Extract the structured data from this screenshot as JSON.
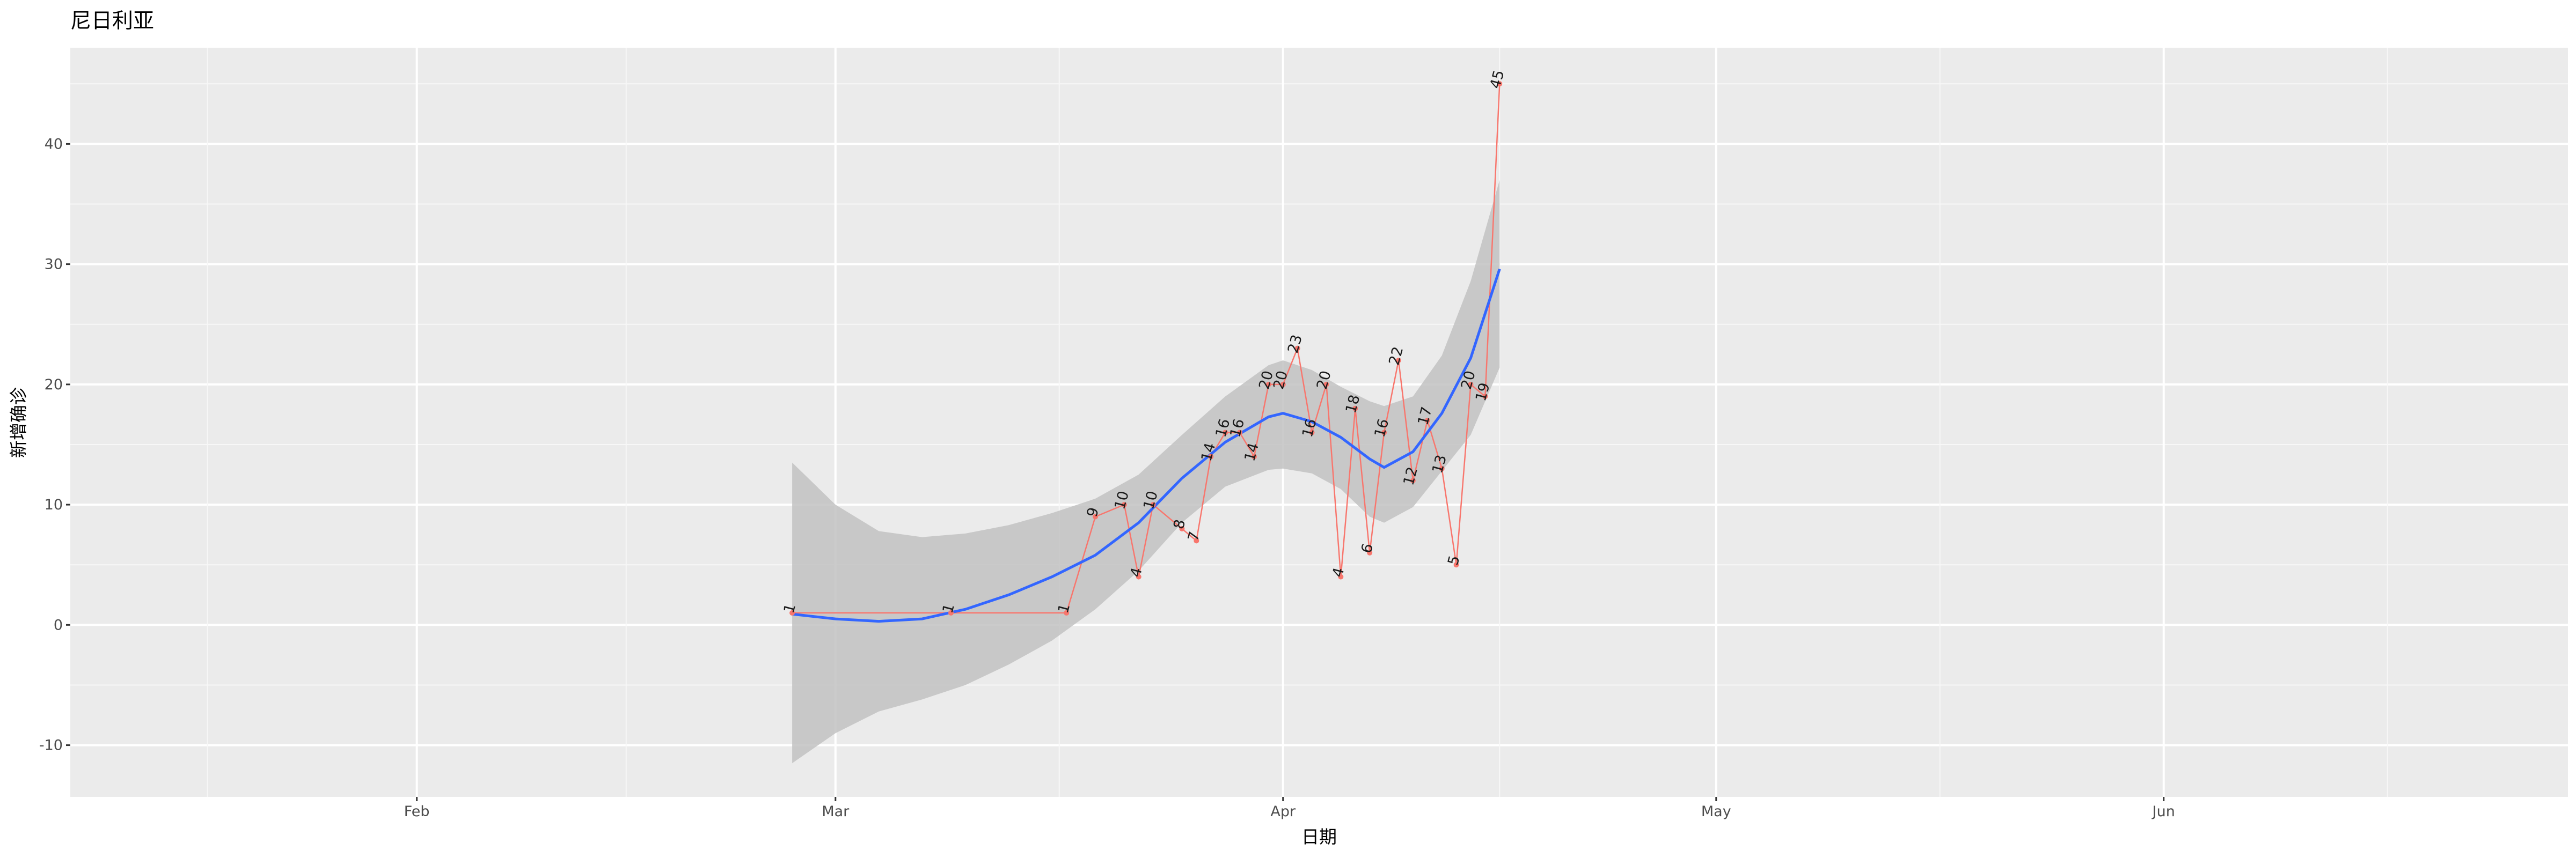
{
  "chart_data": {
    "type": "line",
    "title": "尼日利亚",
    "xlabel": "日期",
    "ylabel": "新增确诊",
    "x_axis": {
      "type": "date",
      "range": [
        "2020-01-08",
        "2020-06-29"
      ],
      "ticks": [
        {
          "date": "2020-02-01",
          "label": "Feb"
        },
        {
          "date": "2020-03-01",
          "label": "Mar"
        },
        {
          "date": "2020-04-01",
          "label": "Apr"
        },
        {
          "date": "2020-05-01",
          "label": "May"
        },
        {
          "date": "2020-06-01",
          "label": "Jun"
        }
      ]
    },
    "y_axis": {
      "range": [
        -14.3,
        48.0
      ],
      "ticks": [
        -10,
        0,
        10,
        20,
        30,
        40
      ]
    },
    "grid": true,
    "panel_background": "#ebebeb",
    "colors": {
      "points_line": "#f8766d",
      "smooth_line": "#3366ff",
      "confidence_band": "#c2c2c2"
    },
    "series": [
      {
        "values": [
          {
            "x": "2020-02-27",
            "y": 1
          },
          {
            "x": "2020-03-09",
            "y": 1
          },
          {
            "x": "2020-03-17",
            "y": 1
          },
          {
            "x": "2020-03-19",
            "y": 9
          },
          {
            "x": "2020-03-21",
            "y": 10
          },
          {
            "x": "2020-03-22",
            "y": 4
          },
          {
            "x": "2020-03-23",
            "y": 10
          },
          {
            "x": "2020-03-25",
            "y": 8
          },
          {
            "x": "2020-03-26",
            "y": 7
          },
          {
            "x": "2020-03-27",
            "y": 14
          },
          {
            "x": "2020-03-28",
            "y": 16
          },
          {
            "x": "2020-03-29",
            "y": 16
          },
          {
            "x": "2020-03-30",
            "y": 14
          },
          {
            "x": "2020-03-31",
            "y": 20
          },
          {
            "x": "2020-04-01",
            "y": 20
          },
          {
            "x": "2020-04-02",
            "y": 23
          },
          {
            "x": "2020-04-03",
            "y": 16
          },
          {
            "x": "2020-04-04",
            "y": 20
          },
          {
            "x": "2020-04-05",
            "y": 4
          },
          {
            "x": "2020-04-06",
            "y": 18
          },
          {
            "x": "2020-04-07",
            "y": 6
          },
          {
            "x": "2020-04-08",
            "y": 16
          },
          {
            "x": "2020-04-09",
            "y": 22
          },
          {
            "x": "2020-04-10",
            "y": 12
          },
          {
            "x": "2020-04-11",
            "y": 17
          },
          {
            "x": "2020-04-12",
            "y": 13
          },
          {
            "x": "2020-04-13",
            "y": 5
          },
          {
            "x": "2020-04-14",
            "y": 20
          },
          {
            "x": "2020-04-15",
            "y": 19
          },
          {
            "x": "2020-04-16",
            "y": 45
          }
        ]
      }
    ],
    "smooth": {
      "values": [
        {
          "x": "2020-02-27",
          "y": 0.9,
          "ymin": -11.5,
          "ymax": 13.5
        },
        {
          "x": "2020-03-01",
          "y": 0.5,
          "ymin": -9.0,
          "ymax": 10.0
        },
        {
          "x": "2020-03-04",
          "y": 0.3,
          "ymin": -7.2,
          "ymax": 7.8
        },
        {
          "x": "2020-03-07",
          "y": 0.5,
          "ymin": -6.2,
          "ymax": 7.3
        },
        {
          "x": "2020-03-10",
          "y": 1.3,
          "ymin": -5.0,
          "ymax": 7.6
        },
        {
          "x": "2020-03-13",
          "y": 2.5,
          "ymin": -3.3,
          "ymax": 8.3
        },
        {
          "x": "2020-03-16",
          "y": 4.0,
          "ymin": -1.3,
          "ymax": 9.3
        },
        {
          "x": "2020-03-19",
          "y": 5.8,
          "ymin": 1.3,
          "ymax": 10.5
        },
        {
          "x": "2020-03-22",
          "y": 8.5,
          "ymin": 4.5,
          "ymax": 12.5
        },
        {
          "x": "2020-03-25",
          "y": 12.2,
          "ymin": 8.5,
          "ymax": 15.8
        },
        {
          "x": "2020-03-28",
          "y": 15.2,
          "ymin": 11.5,
          "ymax": 19.0
        },
        {
          "x": "2020-03-31",
          "y": 17.3,
          "ymin": 12.9,
          "ymax": 21.6
        },
        {
          "x": "2020-04-01",
          "y": 17.6,
          "ymin": 13.0,
          "ymax": 22.0
        },
        {
          "x": "2020-04-03",
          "y": 16.9,
          "ymin": 12.6,
          "ymax": 21.2
        },
        {
          "x": "2020-04-05",
          "y": 15.6,
          "ymin": 11.3,
          "ymax": 19.8
        },
        {
          "x": "2020-04-07",
          "y": 13.8,
          "ymin": 9.0,
          "ymax": 18.6
        },
        {
          "x": "2020-04-08",
          "y": 13.1,
          "ymin": 8.5,
          "ymax": 18.2
        },
        {
          "x": "2020-04-10",
          "y": 14.4,
          "ymin": 9.8,
          "ymax": 19.0
        },
        {
          "x": "2020-04-12",
          "y": 17.6,
          "ymin": 12.8,
          "ymax": 22.4
        },
        {
          "x": "2020-04-14",
          "y": 22.2,
          "ymin": 15.8,
          "ymax": 28.6
        },
        {
          "x": "2020-04-16",
          "y": 29.6,
          "ymin": 21.4,
          "ymax": 37.0
        }
      ]
    }
  }
}
